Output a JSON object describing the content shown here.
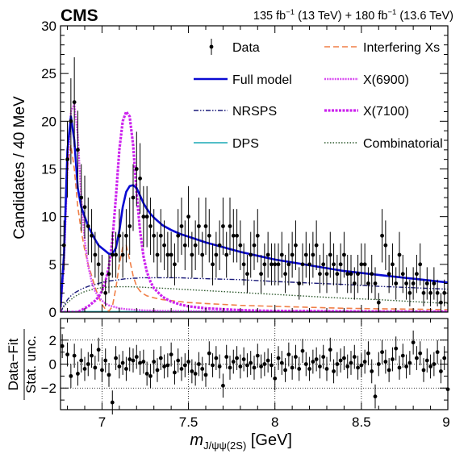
{
  "header": {
    "experiment": "CMS",
    "lumi_a": "135 fb",
    "lumi_a_exp": "−1",
    "lumi_a_energy": " (13 TeV) + ",
    "lumi_b": "180 fb",
    "lumi_b_exp": "−1",
    "lumi_b_energy": " (13.6 TeV)"
  },
  "colors": {
    "full_model": "#0a0ad2",
    "nrsps": "#1b1b7a",
    "dps": "#19a9b5",
    "interfering": "#f07f47",
    "x6900": "#d84df0",
    "x7100": "#cc22ee",
    "combinatorial": "#2f5a2f",
    "data": "#000000"
  },
  "chart_data": [
    {
      "type": "line",
      "panel": "main",
      "ylabel": "Candidates / 40 MeV",
      "xlim": [
        6.76,
        9.0
      ],
      "ylim": [
        0,
        30
      ],
      "xticks": [
        7,
        7.5,
        8,
        8.5,
        9
      ],
      "xtick_labels": [
        "7",
        "7.5",
        "8",
        "8.5",
        "9"
      ],
      "yticks": [
        0,
        5,
        10,
        15,
        20,
        25,
        30
      ],
      "ytick_labels": [
        "0",
        "5",
        "10",
        "15",
        "20",
        "25",
        "30"
      ],
      "legend": [
        {
          "label": "Data",
          "key": "data"
        },
        {
          "label": "Interfering Xs",
          "key": "interfering"
        },
        {
          "label": "Full model",
          "key": "full_model"
        },
        {
          "label": "X(6900)",
          "key": "x6900"
        },
        {
          "label": "NRSPS",
          "key": "nrsps"
        },
        {
          "label": "X(7100)",
          "key": "x7100"
        },
        {
          "label": "DPS",
          "key": "dps"
        },
        {
          "label": "Combinatorial",
          "key": "combinatorial"
        }
      ],
      "data_points": {
        "x": [
          6.78,
          6.8,
          6.82,
          6.84,
          6.86,
          6.88,
          6.9,
          6.92,
          6.94,
          6.96,
          6.98,
          7.0,
          7.02,
          7.04,
          7.06,
          7.08,
          7.1,
          7.12,
          7.14,
          7.16,
          7.18,
          7.2,
          7.22,
          7.24,
          7.26,
          7.28,
          7.3,
          7.32,
          7.34,
          7.36,
          7.38,
          7.4,
          7.42,
          7.44,
          7.46,
          7.48,
          7.5,
          7.52,
          7.54,
          7.56,
          7.58,
          7.6,
          7.62,
          7.64,
          7.66,
          7.68,
          7.7,
          7.72,
          7.74,
          7.76,
          7.78,
          7.8,
          7.82,
          7.84,
          7.86,
          7.88,
          7.9,
          7.92,
          7.94,
          7.96,
          7.98,
          8.0,
          8.02,
          8.04,
          8.06,
          8.08,
          8.1,
          8.12,
          8.14,
          8.16,
          8.18,
          8.2,
          8.22,
          8.24,
          8.26,
          8.28,
          8.3,
          8.32,
          8.34,
          8.36,
          8.38,
          8.4,
          8.42,
          8.44,
          8.46,
          8.48,
          8.5,
          8.52,
          8.54,
          8.56,
          8.58,
          8.6,
          8.62,
          8.64,
          8.66,
          8.68,
          8.7,
          8.72,
          8.74,
          8.76,
          8.78,
          8.8,
          8.82,
          8.84,
          8.86,
          8.88,
          8.9,
          8.92,
          8.94,
          8.96,
          8.98
        ],
        "y": [
          7,
          16,
          20,
          22,
          17,
          12,
          11,
          9,
          8,
          6,
          5,
          4,
          2,
          4,
          6,
          6,
          8,
          6,
          8,
          9,
          12,
          15,
          14,
          10,
          10,
          9,
          8,
          6,
          8,
          7,
          6,
          6,
          5,
          8,
          9,
          7,
          10,
          6,
          7,
          9,
          6,
          9,
          8,
          5,
          6,
          7,
          9,
          6,
          9,
          8,
          8,
          7,
          5,
          4,
          6,
          7,
          8,
          4,
          5,
          6,
          5,
          5,
          5,
          6,
          4,
          5,
          6,
          7,
          3,
          5,
          6,
          5,
          6,
          7,
          4,
          5,
          4,
          6,
          5,
          4,
          5,
          6,
          4,
          4,
          3,
          4,
          5,
          5,
          3,
          4,
          3,
          1,
          8,
          7,
          4,
          5,
          3,
          6,
          4,
          3,
          2,
          3,
          4,
          5,
          2,
          3,
          2,
          3,
          2,
          1,
          2
        ],
        "err": [
          2.6,
          4.0,
          4.5,
          4.7,
          4.1,
          3.5,
          3.3,
          3.0,
          2.8,
          2.4,
          2.2,
          2.0,
          1.4,
          2.0,
          2.4,
          2.4,
          2.8,
          2.4,
          2.8,
          3.0,
          3.5,
          3.9,
          3.7,
          3.2,
          3.2,
          3.0,
          2.8,
          2.4,
          2.8,
          2.6,
          2.4,
          2.4,
          2.2,
          2.8,
          3.0,
          2.6,
          3.2,
          2.4,
          2.6,
          3.0,
          2.4,
          3.0,
          2.8,
          2.2,
          2.4,
          2.6,
          3.0,
          2.4,
          3.0,
          2.8,
          2.8,
          2.6,
          2.2,
          2.0,
          2.4,
          2.6,
          2.8,
          2.0,
          2.2,
          2.4,
          2.2,
          2.2,
          2.2,
          2.4,
          2.0,
          2.2,
          2.4,
          2.6,
          1.7,
          2.2,
          2.4,
          2.2,
          2.4,
          2.6,
          2.0,
          2.2,
          2.0,
          2.4,
          2.2,
          2.0,
          2.2,
          2.4,
          2.0,
          2.0,
          1.7,
          2.0,
          2.2,
          2.2,
          1.7,
          2.0,
          1.7,
          1.0,
          2.8,
          2.6,
          2.0,
          2.2,
          1.7,
          2.4,
          2.0,
          1.7,
          1.4,
          1.7,
          2.0,
          2.2,
          1.4,
          1.7,
          1.4,
          1.7,
          1.4,
          1.0,
          1.4
        ]
      },
      "curves": {
        "x": [
          6.76,
          6.78,
          6.8,
          6.82,
          6.84,
          6.86,
          6.88,
          6.9,
          6.92,
          6.94,
          6.96,
          6.98,
          7.0,
          7.02,
          7.04,
          7.06,
          7.08,
          7.1,
          7.12,
          7.14,
          7.16,
          7.18,
          7.2,
          7.22,
          7.24,
          7.26,
          7.28,
          7.3,
          7.35,
          7.4,
          7.45,
          7.5,
          7.6,
          7.7,
          7.8,
          7.9,
          8.0,
          8.2,
          8.4,
          8.6,
          8.8,
          9.0
        ],
        "full_model": [
          0.5,
          6,
          17,
          20.5,
          18,
          13,
          11,
          10,
          9,
          8.3,
          7.6,
          7.0,
          6.7,
          6.4,
          6.1,
          6.1,
          6.7,
          8.5,
          11,
          12.6,
          13.2,
          13.3,
          13,
          12.2,
          11.4,
          10.8,
          10.3,
          9.9,
          9.1,
          8.6,
          8.2,
          7.9,
          7.3,
          6.8,
          6.3,
          5.9,
          5.5,
          4.9,
          4.3,
          3.9,
          3.5,
          3.1
        ],
        "interfering": [
          0.2,
          5,
          15,
          17.5,
          15,
          11,
          8.5,
          6.5,
          5,
          3.8,
          2.6,
          1.6,
          0.8,
          0.3,
          0.1,
          0.6,
          2.5,
          5.0,
          6.8,
          7.0,
          5.5,
          3.8,
          2.7,
          2.2,
          1.9,
          1.7,
          1.6,
          1.5,
          1.3,
          1.2,
          1.1,
          1.0,
          0.9,
          0.8,
          0.7,
          0.65,
          0.6,
          0.5,
          0.4,
          0.35,
          0.3,
          0.25
        ],
        "x6900": [
          0.2,
          5,
          15,
          21,
          21.8,
          18.5,
          12,
          7.5,
          4.8,
          3.2,
          2.2,
          1.6,
          1.2,
          0.9,
          0.7,
          0.6,
          0.5,
          0.4,
          0.35,
          0.3,
          0.28,
          0.25,
          0.23,
          0.2,
          0.18,
          0.17,
          0.16,
          0.15,
          0.13,
          0.12,
          0.11,
          0.1,
          0.09,
          0.08,
          0.07,
          0.06,
          0.06,
          0.05,
          0.04,
          0.04,
          0.03,
          0.03
        ],
        "x7100": [
          0,
          0,
          0,
          0,
          0,
          0,
          0.2,
          0.4,
          0.6,
          0.9,
          1.2,
          1.6,
          2.2,
          3.2,
          4.8,
          7.5,
          12,
          17,
          20,
          21,
          20.5,
          17.5,
          12.5,
          8.5,
          5.8,
          4.2,
          3.2,
          2.5,
          1.6,
          1.1,
          0.8,
          0.6,
          0.4,
          0.3,
          0.2,
          0.15,
          0.12,
          0.1,
          0.08,
          0.06,
          0.05,
          0.04
        ],
        "nrsps": [
          0,
          0.7,
          1.3,
          1.7,
          2.0,
          2.2,
          2.4,
          2.55,
          2.7,
          2.8,
          2.9,
          3.0,
          3.1,
          3.2,
          3.25,
          3.3,
          3.35,
          3.4,
          3.45,
          3.5,
          3.5,
          3.55,
          3.55,
          3.6,
          3.6,
          3.6,
          3.6,
          3.6,
          3.6,
          3.6,
          3.6,
          3.55,
          3.5,
          3.45,
          3.4,
          3.3,
          3.2,
          3.05,
          2.9,
          2.7,
          2.55,
          2.4
        ],
        "dps": [
          0.05,
          0.05,
          0.05,
          0.05,
          0.05,
          0.05,
          0.05,
          0.05,
          0.05,
          0.05,
          0.05,
          0.05,
          0.05,
          0.05,
          0.05,
          0.05,
          0.05,
          0.05,
          0.05,
          0.05,
          0.05,
          0.05,
          0.05,
          0.05,
          0.05,
          0.05,
          0.05,
          0.05,
          0.05,
          0.05,
          0.05,
          0.05,
          0.05,
          0.05,
          0.05,
          0.05,
          0.05,
          0.05,
          0.05,
          0.05,
          0.05,
          0.05
        ],
        "combinatorial": [
          0,
          0.6,
          1.0,
          1.3,
          1.6,
          1.8,
          2.0,
          2.15,
          2.25,
          2.35,
          2.45,
          2.5,
          2.55,
          2.6,
          2.62,
          2.64,
          2.65,
          2.65,
          2.65,
          2.65,
          2.65,
          2.64,
          2.63,
          2.62,
          2.6,
          2.58,
          2.56,
          2.54,
          2.5,
          2.45,
          2.4,
          2.35,
          2.25,
          2.15,
          2.05,
          1.95,
          1.85,
          1.65,
          1.45,
          1.3,
          1.1,
          0.9
        ]
      }
    },
    {
      "type": "scatter",
      "panel": "pull",
      "ylabel": "Data−Fit",
      "ylabel2": "Stat. unc.",
      "xlabel_main": "m",
      "xlabel_sub": "J/ψψ(2S)",
      "xlabel_unit": " [GeV]",
      "xlim": [
        6.76,
        9.0
      ],
      "ylim": [
        -3.8,
        3.8
      ],
      "xticks": [
        7,
        7.5,
        8,
        8.5,
        9
      ],
      "xtick_labels": [
        "7",
        "7.5",
        "8",
        "8.5",
        "9"
      ],
      "yticks": [
        -2,
        0,
        2
      ],
      "ytick_labels": [
        "−2",
        "0",
        "2"
      ],
      "grid": true,
      "x": [
        6.77,
        6.8,
        6.82,
        6.84,
        6.86,
        6.88,
        6.9,
        6.92,
        6.94,
        6.96,
        6.98,
        7.0,
        7.02,
        7.04,
        7.06,
        7.08,
        7.1,
        7.12,
        7.14,
        7.16,
        7.18,
        7.2,
        7.22,
        7.24,
        7.26,
        7.28,
        7.3,
        7.32,
        7.34,
        7.36,
        7.38,
        7.4,
        7.42,
        7.44,
        7.46,
        7.48,
        7.5,
        7.52,
        7.54,
        7.56,
        7.58,
        7.6,
        7.62,
        7.64,
        7.66,
        7.68,
        7.7,
        7.72,
        7.74,
        7.76,
        7.78,
        7.8,
        7.82,
        7.84,
        7.86,
        7.88,
        7.9,
        7.92,
        7.94,
        7.96,
        7.98,
        8.0,
        8.02,
        8.04,
        8.06,
        8.08,
        8.1,
        8.12,
        8.14,
        8.16,
        8.18,
        8.2,
        8.22,
        8.24,
        8.26,
        8.28,
        8.3,
        8.32,
        8.34,
        8.36,
        8.38,
        8.4,
        8.42,
        8.44,
        8.46,
        8.48,
        8.5,
        8.52,
        8.54,
        8.56,
        8.58,
        8.6,
        8.62,
        8.64,
        8.66,
        8.68,
        8.7,
        8.72,
        8.74,
        8.76,
        8.78,
        8.8,
        8.82,
        8.84,
        8.86,
        8.88,
        8.9,
        8.92,
        8.94,
        8.96,
        8.98,
        9.0
      ],
      "y": [
        1.5,
        0.8,
        -1.0,
        0.7,
        -0.8,
        0.3,
        -0.4,
        0.0,
        0.7,
        -0.3,
        1.2,
        -0.5,
        0.3,
        -0.9,
        -3.2,
        0.5,
        -0.2,
        0.1,
        -0.4,
        0.4,
        0.3,
        0.6,
        0.1,
        0.2,
        -0.8,
        -1.0,
        0.2,
        -0.5,
        0.5,
        -0.2,
        -0.1,
        0.8,
        -0.7,
        0.3,
        -0.4,
        -0.1,
        0.2,
        -0.6,
        -0.8,
        0.0,
        -0.4,
        -0.9,
        0.9,
        -0.1,
        0.5,
        -0.2,
        -1.8,
        0.6,
        -0.3,
        0.2,
        0.5,
        -0.2,
        0.4,
        -0.1,
        0.1,
        -0.3,
        0.7,
        -0.2,
        0.0,
        0.3,
        -0.1,
        -1.2,
        0.5,
        0.1,
        -0.5,
        0.8,
        -0.3,
        0.6,
        -0.4,
        1.1,
        0.0,
        -0.4,
        0.2,
        0.4,
        -0.2,
        0.6,
        -0.4,
        1.2,
        -0.6,
        0.0,
        0.3,
        0.5,
        -0.2,
        0.1,
        0.6,
        -0.3,
        -0.1,
        0.2,
        0.9,
        -0.6,
        -2.7,
        0.0,
        1.0,
        0.2,
        -0.5,
        0.4,
        1.3,
        -0.3,
        0.7,
        -0.2,
        0.1,
        1.8,
        0.5,
        0.9,
        -0.5,
        0.3,
        -0.2,
        0.0,
        1.0,
        -0.6,
        0.5,
        -2.1
      ],
      "err": 1
    }
  ]
}
